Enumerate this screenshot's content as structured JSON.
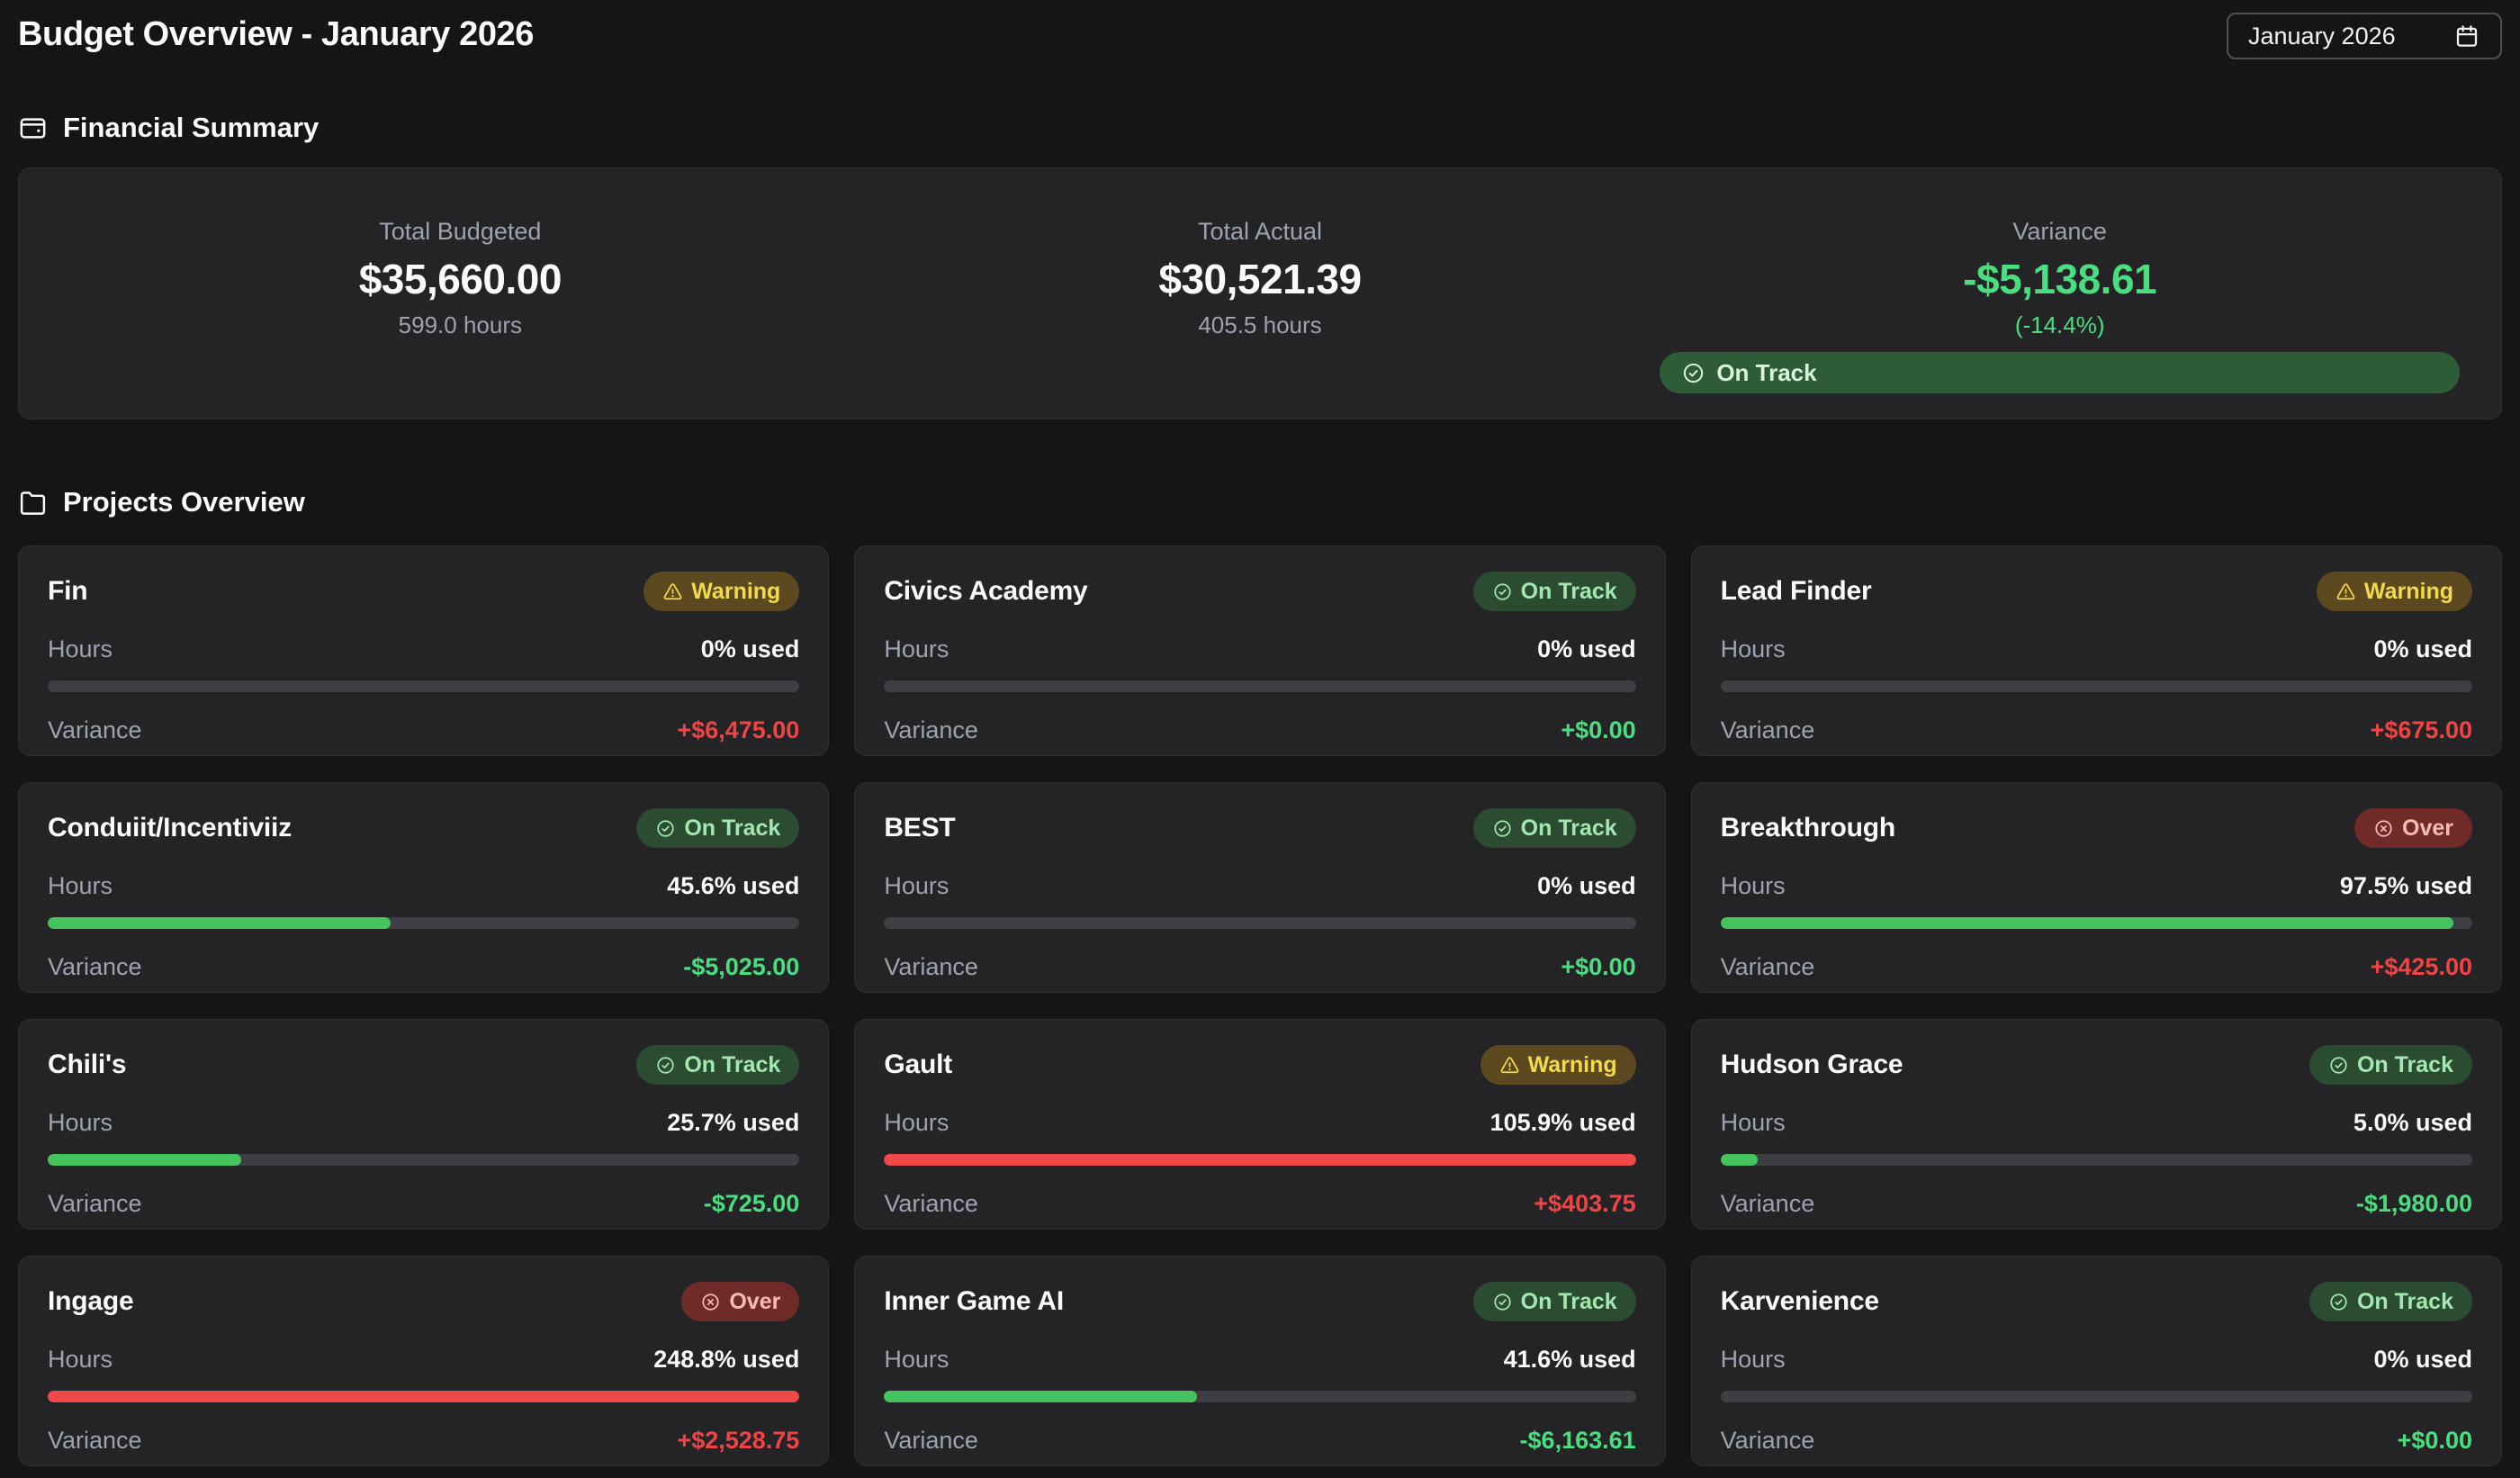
{
  "header": {
    "title": "Budget Overview - January 2026",
    "month_value": "January 2026"
  },
  "financial_summary": {
    "heading": "Financial Summary",
    "icon": "wallet-icon",
    "budgeted": {
      "label": "Total Budgeted",
      "value": "$35,660.00",
      "sub": "599.0 hours"
    },
    "actual": {
      "label": "Total Actual",
      "value": "$30,521.39",
      "sub": "405.5 hours"
    },
    "variance": {
      "label": "Variance",
      "value": "-$5,138.61",
      "percent": "(-14.4%)",
      "status_label": "On Track",
      "status_icon": "check-circle-icon"
    }
  },
  "projects": {
    "heading": "Projects Overview",
    "icon": "folder-icon",
    "hours_label": "Hours",
    "variance_label": "Variance",
    "cards": [
      {
        "name": "Fin",
        "status_type": "warning",
        "used_label": "0% used",
        "used_pct": 0,
        "bar_tone": "green",
        "variance": "+$6,475.00",
        "variance_tone": "red"
      },
      {
        "name": "Civics Academy",
        "status_type": "on-track",
        "used_label": "0% used",
        "used_pct": 0,
        "bar_tone": "green",
        "variance": "+$0.00",
        "variance_tone": "green"
      },
      {
        "name": "Lead Finder",
        "status_type": "warning",
        "used_label": "0% used",
        "used_pct": 0,
        "bar_tone": "green",
        "variance": "+$675.00",
        "variance_tone": "red"
      },
      {
        "name": "Conduiit/Incentiviiz",
        "status_type": "on-track",
        "used_label": "45.6% used",
        "used_pct": 45.6,
        "bar_tone": "green",
        "variance": "-$5,025.00",
        "variance_tone": "green"
      },
      {
        "name": "BEST",
        "status_type": "on-track",
        "used_label": "0% used",
        "used_pct": 0,
        "bar_tone": "green",
        "variance": "+$0.00",
        "variance_tone": "green"
      },
      {
        "name": "Breakthrough",
        "status_type": "over",
        "used_label": "97.5% used",
        "used_pct": 97.5,
        "bar_tone": "green",
        "variance": "+$425.00",
        "variance_tone": "red"
      },
      {
        "name": "Chili's",
        "status_type": "on-track",
        "used_label": "25.7% used",
        "used_pct": 25.7,
        "bar_tone": "green",
        "variance": "-$725.00",
        "variance_tone": "green"
      },
      {
        "name": "Gault",
        "status_type": "warning",
        "used_label": "105.9% used",
        "used_pct": 105.9,
        "bar_tone": "red",
        "variance": "+$403.75",
        "variance_tone": "red"
      },
      {
        "name": "Hudson Grace",
        "status_type": "on-track",
        "used_label": "5.0% used",
        "used_pct": 5.0,
        "bar_tone": "green",
        "variance": "-$1,980.00",
        "variance_tone": "green"
      },
      {
        "name": "Ingage",
        "status_type": "over",
        "used_label": "248.8% used",
        "used_pct": 248.8,
        "bar_tone": "red",
        "variance": "+$2,528.75",
        "variance_tone": "red"
      },
      {
        "name": "Inner Game AI",
        "status_type": "on-track",
        "used_label": "41.6% used",
        "used_pct": 41.6,
        "bar_tone": "green",
        "variance": "-$6,163.61",
        "variance_tone": "green"
      },
      {
        "name": "Karvenience",
        "status_type": "on-track",
        "used_label": "0% used",
        "used_pct": 0,
        "bar_tone": "green",
        "variance": "+$0.00",
        "variance_tone": "green"
      }
    ]
  },
  "status_meta": {
    "on-track": {
      "label": "On Track",
      "icon": "check-circle-icon"
    },
    "warning": {
      "label": "Warning",
      "icon": "warning-triangle-icon"
    },
    "over": {
      "label": "Over",
      "icon": "x-circle-icon"
    }
  },
  "colors": {
    "page_bg": "#151516",
    "card_bg": "#242427",
    "card_border": "#303034",
    "fg": "#fafafa",
    "muted": "#9ca3af",
    "green_text": "#4ade80",
    "red_text": "#ef4444",
    "bar_green": "#45c35e",
    "bar_red": "#ef4848",
    "track": "#3d3f44",
    "badge_ontrack_bg": "#2b4c31",
    "badge_ontrack_fg": "#a3e8b0",
    "badge_warning_bg": "#5d491f",
    "badge_warning_fg": "#f2da4e",
    "badge_over_bg": "#702a28",
    "badge_over_fg": "#f4bbb9",
    "pill_bg": "#2e5c36",
    "pill_fg": "#d8f3dc",
    "input_border": "#4e4e55"
  }
}
